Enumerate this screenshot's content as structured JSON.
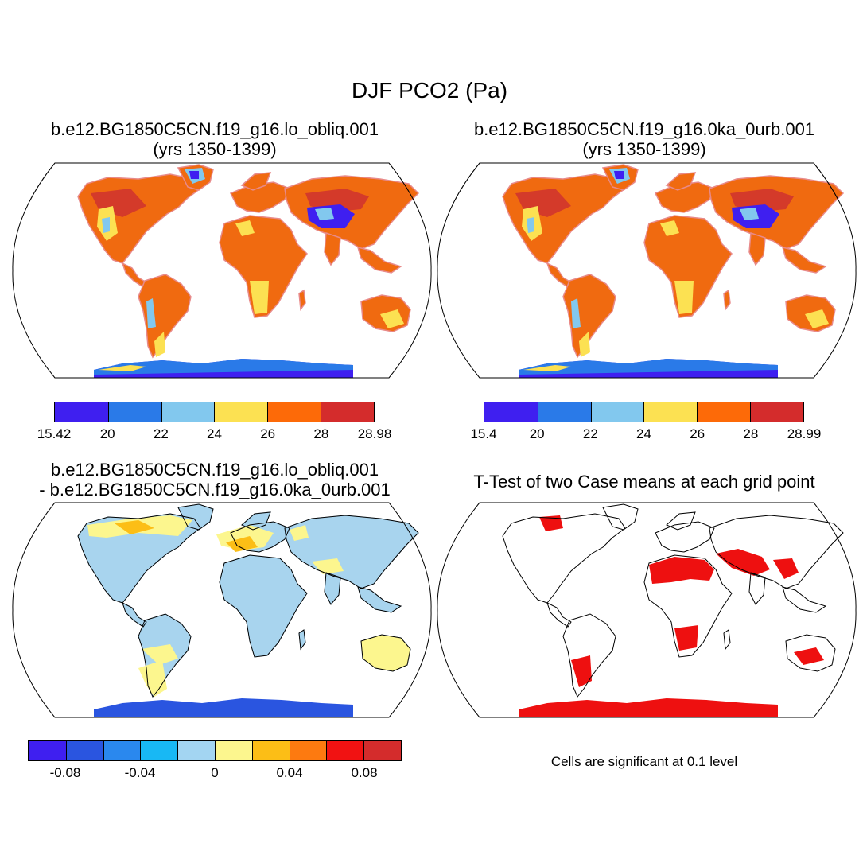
{
  "figure": {
    "title": "DJF PCO2 (Pa)"
  },
  "panels": [
    {
      "id": "case1",
      "title_line1": "b.e12.BG1850C5CN.f19_g16.lo_obliq.001",
      "title_line2": "(yrs 1350-1399)",
      "colorbar": {
        "colors": [
          "#3f1ff0",
          "#2a7ae8",
          "#82c8ee",
          "#fce152",
          "#fd6a08",
          "#d42c2c"
        ],
        "ticks": [
          "15.42",
          "20",
          "22",
          "24",
          "26",
          "28",
          "28.98"
        ]
      }
    },
    {
      "id": "case2",
      "title_line1": "b.e12.BG1850C5CN.f19_g16.0ka_0urb.001",
      "title_line2": "(yrs 1350-1399)",
      "colorbar": {
        "colors": [
          "#3f1ff0",
          "#2a7ae8",
          "#82c8ee",
          "#fce152",
          "#fd6a08",
          "#d42c2c"
        ],
        "ticks": [
          "15.4",
          "20",
          "22",
          "24",
          "26",
          "28",
          "28.99"
        ]
      }
    },
    {
      "id": "difference",
      "title_line1": "b.e12.BG1850C5CN.f19_g16.lo_obliq.001",
      "title_line2": "- b.e12.BG1850C5CN.f19_g16.0ka_0urb.001",
      "colorbar": {
        "colors": [
          "#3f1ff0",
          "#2a55e0",
          "#2a88ee",
          "#18b8f4",
          "#a3d5f2",
          "#fcf68e",
          "#fcbe16",
          "#fd7a10",
          "#f11212",
          "#d42c2c"
        ],
        "ticks": [
          "-0.08",
          "-0.04",
          "0",
          "0.04",
          "0.08"
        ]
      }
    },
    {
      "id": "ttest",
      "title_line1": "T-Test of two Case means at each grid point",
      "note": "Cells are significant at 0.1 level",
      "significant_color": "#ee1010"
    }
  ],
  "map_fills": {
    "case": {
      "base": "#f06a10",
      "high": "#d43a2a",
      "mid": "#fce152",
      "light_blue": "#82c8ee",
      "blue": "#2a7ae8",
      "deep_blue": "#3f1ff0"
    },
    "diff": {
      "land": "#a8d4ee",
      "yellow": "#fcf68e",
      "orange": "#fcbe16",
      "antarctica": "#2a55e0"
    }
  }
}
